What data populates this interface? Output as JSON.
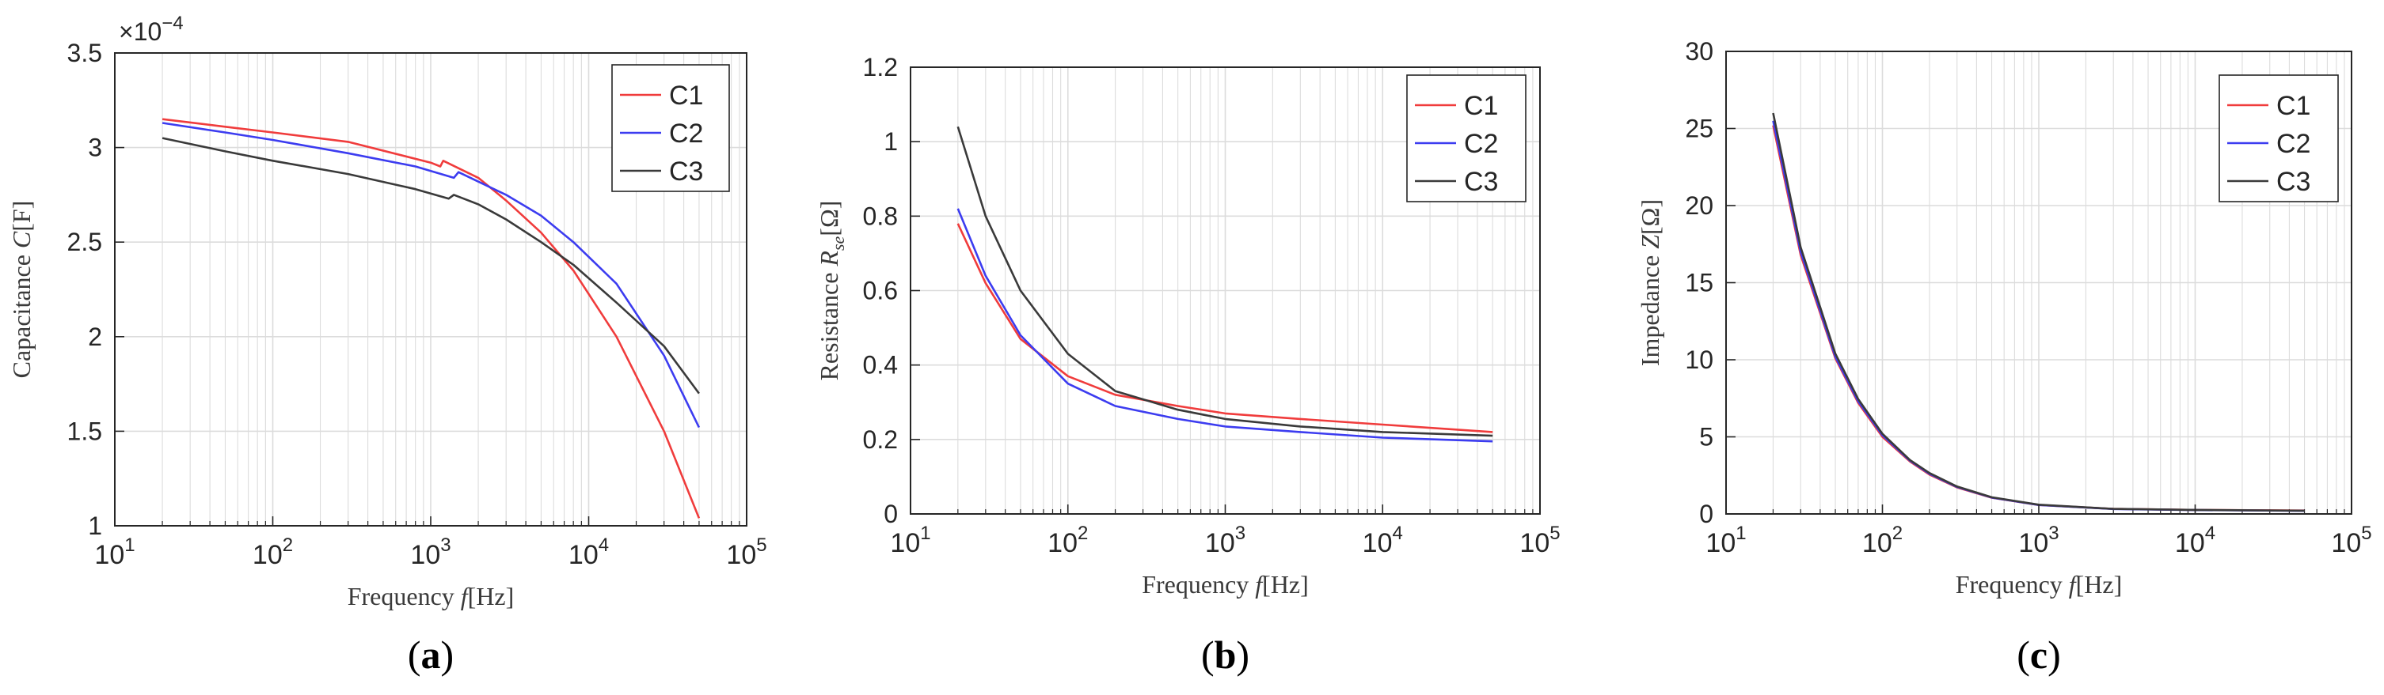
{
  "figure": {
    "panels": [
      "(a)",
      "(b)",
      "(c)"
    ]
  },
  "colors": {
    "C1": "#f03c3c",
    "C2": "#3c3cf0",
    "C3": "#3a3a3a",
    "axis": "#262626",
    "grid": "#dcdcdc"
  },
  "chart_data": [
    {
      "type": "line",
      "panel": "(a)",
      "xlabel": "Frequency f[Hz]",
      "ylabel": "Capacitance C[F]",
      "xscale": "log",
      "xlim": [
        10,
        100000
      ],
      "ylim": [
        1,
        3.5
      ],
      "xticks": [
        "10^1",
        "10^2",
        "10^3",
        "10^4",
        "10^5"
      ],
      "yticks": [
        "1",
        "1.5",
        "2",
        "2.5",
        "3",
        "3.5"
      ],
      "ytick_values": [
        1,
        1.5,
        2,
        2.5,
        3,
        3.5
      ],
      "multiplier": "×10^−4",
      "grid": true,
      "legend_position": "top-right",
      "series": [
        {
          "name": "C1",
          "x": [
            20,
            50,
            100,
            300,
            1000,
            1150,
            1200,
            2000,
            3000,
            5000,
            8000,
            15000,
            30000,
            50000
          ],
          "values": [
            3.15,
            3.11,
            3.08,
            3.03,
            2.92,
            2.9,
            2.93,
            2.84,
            2.72,
            2.55,
            2.35,
            2.0,
            1.5,
            1.04
          ]
        },
        {
          "name": "C2",
          "x": [
            20,
            50,
            100,
            300,
            800,
            1400,
            1500,
            2000,
            3000,
            5000,
            8000,
            15000,
            30000,
            50000
          ],
          "values": [
            3.13,
            3.08,
            3.04,
            2.97,
            2.9,
            2.84,
            2.87,
            2.82,
            2.75,
            2.64,
            2.5,
            2.28,
            1.9,
            1.52
          ]
        },
        {
          "name": "C3",
          "x": [
            20,
            50,
            100,
            300,
            800,
            1300,
            1400,
            2000,
            3000,
            5000,
            8000,
            15000,
            30000,
            50000
          ],
          "values": [
            3.05,
            2.98,
            2.93,
            2.86,
            2.78,
            2.73,
            2.75,
            2.7,
            2.62,
            2.5,
            2.38,
            2.18,
            1.95,
            1.7
          ]
        }
      ]
    },
    {
      "type": "line",
      "panel": "(b)",
      "xlabel": "Frequency f[Hz]",
      "ylabel": "Resistance R_se[Ω]",
      "xscale": "log",
      "xlim": [
        10,
        100000
      ],
      "ylim": [
        0,
        1.2
      ],
      "xticks": [
        "10^1",
        "10^2",
        "10^3",
        "10^4",
        "10^5"
      ],
      "yticks": [
        "0",
        "0.2",
        "0.4",
        "0.6",
        "0.8",
        "1",
        "1.2"
      ],
      "ytick_values": [
        0,
        0.2,
        0.4,
        0.6,
        0.8,
        1,
        1.2
      ],
      "grid": true,
      "legend_position": "top-right",
      "series": [
        {
          "name": "C1",
          "x": [
            20,
            30,
            50,
            100,
            200,
            500,
            1000,
            3000,
            10000,
            50000
          ],
          "values": [
            0.78,
            0.62,
            0.47,
            0.37,
            0.32,
            0.29,
            0.27,
            0.255,
            0.24,
            0.22
          ]
        },
        {
          "name": "C2",
          "x": [
            20,
            30,
            50,
            100,
            200,
            500,
            1000,
            3000,
            10000,
            50000
          ],
          "values": [
            0.82,
            0.64,
            0.48,
            0.35,
            0.29,
            0.255,
            0.235,
            0.22,
            0.205,
            0.195
          ]
        },
        {
          "name": "C3",
          "x": [
            20,
            30,
            50,
            100,
            200,
            500,
            1000,
            3000,
            10000,
            50000
          ],
          "values": [
            1.04,
            0.8,
            0.6,
            0.43,
            0.33,
            0.28,
            0.255,
            0.235,
            0.22,
            0.21
          ]
        }
      ]
    },
    {
      "type": "line",
      "panel": "(c)",
      "xlabel": "Frequency f[Hz]",
      "ylabel": "Impedance Z[Ω]",
      "xscale": "log",
      "xlim": [
        10,
        100000
      ],
      "ylim": [
        0,
        30
      ],
      "xticks": [
        "10^1",
        "10^2",
        "10^3",
        "10^4",
        "10^5"
      ],
      "yticks": [
        "0",
        "5",
        "10",
        "15",
        "20",
        "25",
        "30"
      ],
      "ytick_values": [
        0,
        5,
        10,
        15,
        20,
        25,
        30
      ],
      "grid": true,
      "legend_position": "top-right",
      "series": [
        {
          "name": "C1",
          "x": [
            20,
            30,
            50,
            70,
            100,
            150,
            200,
            300,
            500,
            1000,
            3000,
            10000,
            50000
          ],
          "values": [
            25.2,
            16.8,
            10.1,
            7.2,
            5.0,
            3.4,
            2.55,
            1.72,
            1.05,
            0.58,
            0.33,
            0.26,
            0.22
          ]
        },
        {
          "name": "C2",
          "x": [
            20,
            30,
            50,
            70,
            100,
            150,
            200,
            300,
            500,
            1000,
            3000,
            10000,
            50000
          ],
          "values": [
            25.5,
            17.0,
            10.2,
            7.3,
            5.1,
            3.45,
            2.6,
            1.75,
            1.06,
            0.58,
            0.32,
            0.25,
            0.2
          ]
        },
        {
          "name": "C3",
          "x": [
            20,
            30,
            50,
            70,
            100,
            150,
            200,
            300,
            500,
            1000,
            3000,
            10000,
            50000
          ],
          "values": [
            26.0,
            17.3,
            10.4,
            7.45,
            5.2,
            3.5,
            2.65,
            1.78,
            1.08,
            0.6,
            0.33,
            0.26,
            0.21
          ]
        }
      ]
    }
  ]
}
